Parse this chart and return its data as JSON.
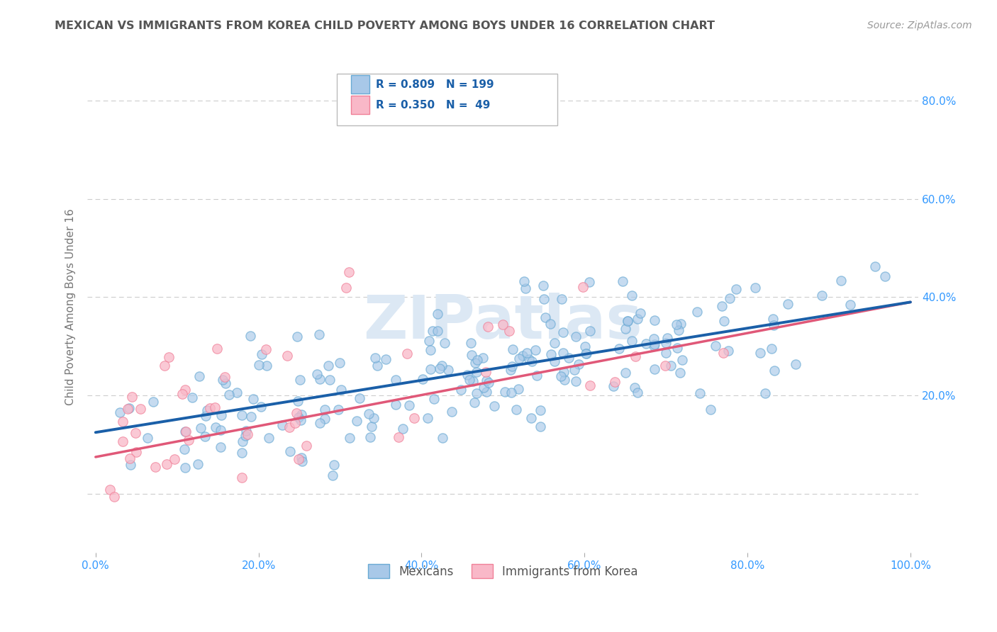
{
  "title": "MEXICAN VS IMMIGRANTS FROM KOREA CHILD POVERTY AMONG BOYS UNDER 16 CORRELATION CHART",
  "source": "Source: ZipAtlas.com",
  "ylabel": "Child Poverty Among Boys Under 16",
  "watermark": "ZIPatlas",
  "blue_R": 0.809,
  "blue_N": 199,
  "pink_R": 0.35,
  "pink_N": 49,
  "blue_face_color": "#a8c8e8",
  "blue_edge_color": "#6aaad4",
  "pink_face_color": "#f9b8c8",
  "pink_edge_color": "#f08098",
  "blue_line_color": "#1a5fa8",
  "pink_line_color": "#e05878",
  "title_color": "#555555",
  "axis_label_color": "#777777",
  "tick_color": "#3399ff",
  "source_color": "#999999",
  "grid_color": "#cccccc",
  "legend_label1": "Mexicans",
  "legend_label2": "Immigrants from Korea",
  "blue_intercept": 0.125,
  "blue_slope": 0.265,
  "pink_intercept": 0.075,
  "pink_slope": 0.315,
  "blue_noise": 0.065,
  "pink_noise": 0.115,
  "blue_seed": 12,
  "pink_seed": 99,
  "xlim_min": -0.01,
  "xlim_max": 1.01,
  "ylim_min": -0.12,
  "ylim_max": 0.88
}
